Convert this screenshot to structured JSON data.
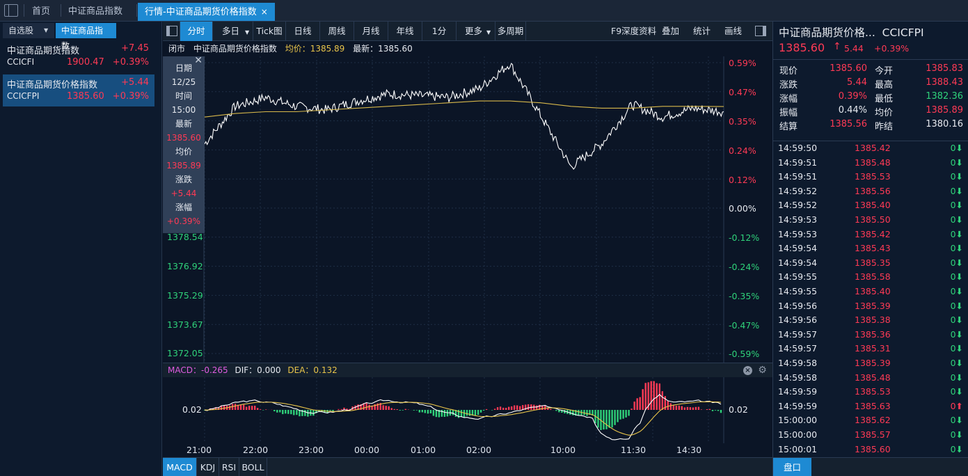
{
  "topbar": {
    "tabs": [
      {
        "label": "首页"
      },
      {
        "label": "中证商品指数"
      },
      {
        "label": "行情-中证商品期货价格指数"
      }
    ],
    "close_glyph": "×"
  },
  "left_panel": {
    "tab_watchlist": "自选股",
    "tab_index": "中证商品指数",
    "items": [
      {
        "name": "中证商品期货指数",
        "code": "CCICFI",
        "price": "1900.47",
        "change": "+7.45",
        "pct": "+0.39%"
      },
      {
        "name": "中证商品期货价格指数",
        "code": "CCICFPI",
        "price": "1385.60",
        "change": "+5.44",
        "pct": "+0.39%"
      }
    ]
  },
  "toolbar": {
    "left_buttons": [
      "分时",
      "多日",
      "Tick图",
      "日线",
      "周线",
      "月线",
      "年线",
      "1分",
      "更多",
      "多周期"
    ],
    "right_buttons": [
      "F9深度资料",
      "叠加",
      "统计",
      "画线"
    ]
  },
  "info_line": {
    "status": "闭市",
    "name": "中证商品期货价格指数",
    "avg": "均价：1385.89",
    "last": "最新：1385.60"
  },
  "hover_box": {
    "rows": [
      "日期",
      "12/25",
      "时间",
      "15:00",
      "最新",
      "1385.60",
      "均价",
      "1385.89",
      "涨跌",
      "+5.44",
      "涨幅",
      "+0.39%"
    ]
  },
  "main_chart": {
    "y_left_labels": [
      "1378.54",
      "1376.92",
      "1375.29",
      "1373.67",
      "1372.05"
    ],
    "y_right_labels": [
      "0.59%",
      "0.47%",
      "0.35%",
      "0.24%",
      "0.12%",
      "0.00%",
      "-0.12%",
      "-0.24%",
      "-0.35%",
      "-0.47%",
      "-0.59%"
    ],
    "colors": {
      "price": "#ffffff",
      "avg": "#d8b84a",
      "up": "#ff3a55",
      "down": "#2fd27a"
    }
  },
  "chart_data": {
    "type": "line",
    "x_ticks": [
      "21:00",
      "22:00",
      "23:00",
      "00:00",
      "01:00",
      "02:00",
      "10:00",
      "11:30",
      "14:30"
    ],
    "series": [
      {
        "name": "最新",
        "values": [
          1383.8,
          1385.9,
          1386.4,
          1385.9,
          1385.7,
          1386.2,
          1386.6,
          1386.5,
          1386.4,
          1386.9,
          1388.3,
          1385.4,
          1382.5,
          1383.8,
          1386.0,
          1385.3,
          1385.8,
          1385.6
        ]
      },
      {
        "name": "均价",
        "values": [
          1385.3,
          1385.5,
          1385.6,
          1385.6,
          1385.7,
          1385.8,
          1385.9,
          1386.0,
          1386.1,
          1386.2,
          1386.2,
          1386.1,
          1385.9,
          1385.8,
          1385.8,
          1385.9,
          1385.9,
          1385.89
        ]
      }
    ]
  },
  "macd": {
    "title": "MACD：",
    "value": "-0.265",
    "dif": "DIF：0.000",
    "dea": "DEA：0.132",
    "level_label": "0.02",
    "level_label_right": "0.02"
  },
  "time_axis": [
    "21:00",
    "22:00",
    "23:00",
    "00:00",
    "01:00",
    "02:00",
    "10:00",
    "11:30",
    "14:30"
  ],
  "indicator_tabs": [
    "MACD",
    "KDJ",
    "RSI",
    "BOLL"
  ],
  "right_panel": {
    "title": "中证商品期货价格...",
    "code": "CCICFPI",
    "price": "1385.60",
    "up_arrow": "↑",
    "change": "5.44",
    "pct": "+0.39%",
    "stats": [
      {
        "l1": "现价",
        "v1": "1385.60",
        "l2": "今开",
        "v2": "1385.83"
      },
      {
        "l1": "涨跌",
        "v1": "5.44",
        "l2": "最高",
        "v2": "1388.43"
      },
      {
        "l1": "涨幅",
        "v1": "0.39%",
        "l2": "最低",
        "v2": "1382.36"
      },
      {
        "l1": "振幅",
        "v1": "0.44%",
        "l2": "均价",
        "v2": "1385.89"
      },
      {
        "l1": "结算",
        "v1": "1385.56",
        "l2": "昨结",
        "v2": "1380.16"
      }
    ],
    "trades": [
      {
        "t": "14:59:50",
        "p": "1385.42",
        "v": "0",
        "d": "down"
      },
      {
        "t": "14:59:51",
        "p": "1385.48",
        "v": "0",
        "d": "down"
      },
      {
        "t": "14:59:51",
        "p": "1385.53",
        "v": "0",
        "d": "down"
      },
      {
        "t": "14:59:52",
        "p": "1385.56",
        "v": "0",
        "d": "down"
      },
      {
        "t": "14:59:52",
        "p": "1385.40",
        "v": "0",
        "d": "down"
      },
      {
        "t": "14:59:53",
        "p": "1385.50",
        "v": "0",
        "d": "down"
      },
      {
        "t": "14:59:53",
        "p": "1385.42",
        "v": "0",
        "d": "down"
      },
      {
        "t": "14:59:54",
        "p": "1385.43",
        "v": "0",
        "d": "down"
      },
      {
        "t": "14:59:54",
        "p": "1385.35",
        "v": "0",
        "d": "down"
      },
      {
        "t": "14:59:55",
        "p": "1385.58",
        "v": "0",
        "d": "down"
      },
      {
        "t": "14:59:55",
        "p": "1385.40",
        "v": "0",
        "d": "down"
      },
      {
        "t": "14:59:56",
        "p": "1385.39",
        "v": "0",
        "d": "down"
      },
      {
        "t": "14:59:56",
        "p": "1385.38",
        "v": "0",
        "d": "down"
      },
      {
        "t": "14:59:57",
        "p": "1385.36",
        "v": "0",
        "d": "down"
      },
      {
        "t": "14:59:57",
        "p": "1385.31",
        "v": "0",
        "d": "down"
      },
      {
        "t": "14:59:58",
        "p": "1385.39",
        "v": "0",
        "d": "down"
      },
      {
        "t": "14:59:58",
        "p": "1385.48",
        "v": "0",
        "d": "down"
      },
      {
        "t": "14:59:59",
        "p": "1385.53",
        "v": "0",
        "d": "down"
      },
      {
        "t": "14:59:59",
        "p": "1385.63",
        "v": "0",
        "d": "up"
      },
      {
        "t": "15:00:00",
        "p": "1385.62",
        "v": "0",
        "d": "down"
      },
      {
        "t": "15:00:00",
        "p": "1385.57",
        "v": "0",
        "d": "down"
      },
      {
        "t": "15:00:01",
        "p": "1385.60",
        "v": "0",
        "d": "down"
      }
    ],
    "bottom_tab": "盘口",
    "arrow_up": "⬆",
    "arrow_down": "⬇"
  }
}
